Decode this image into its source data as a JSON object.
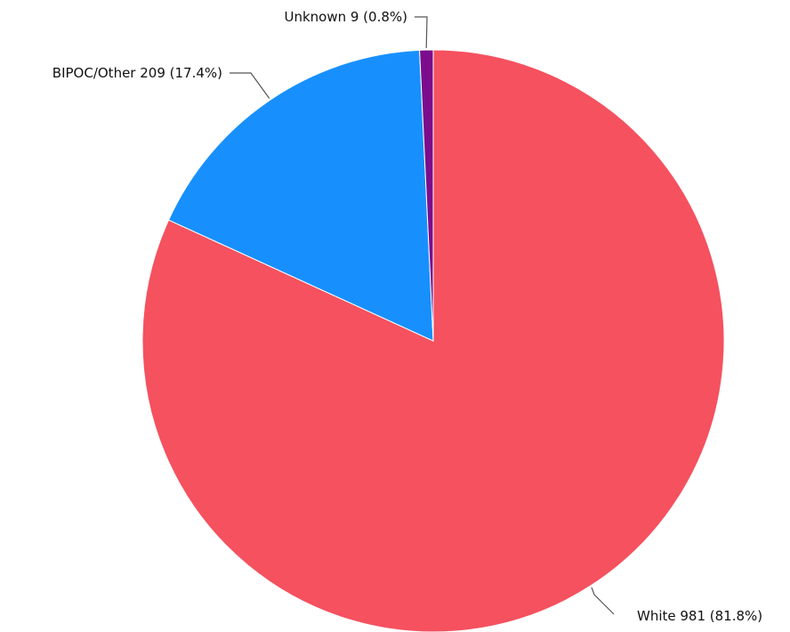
{
  "chart_data": {
    "type": "pie",
    "title": "",
    "start_angle_deg": 0,
    "direction": "clockwise",
    "slices": [
      {
        "name": "White",
        "value": 981,
        "percent": 81.8,
        "color": "#f5515f",
        "label": "White 981 (81.8%)"
      },
      {
        "name": "BIPOC/Other",
        "value": 209,
        "percent": 17.4,
        "color": "#1790fe",
        "label": "BIPOC/Other 209 (17.4%)"
      },
      {
        "name": "Unknown",
        "value": 9,
        "percent": 0.8,
        "color": "#7b0d8c",
        "label": "Unknown 9 (0.8%)"
      }
    ],
    "legend": "none",
    "labels": "outside-with-leader-lines"
  }
}
